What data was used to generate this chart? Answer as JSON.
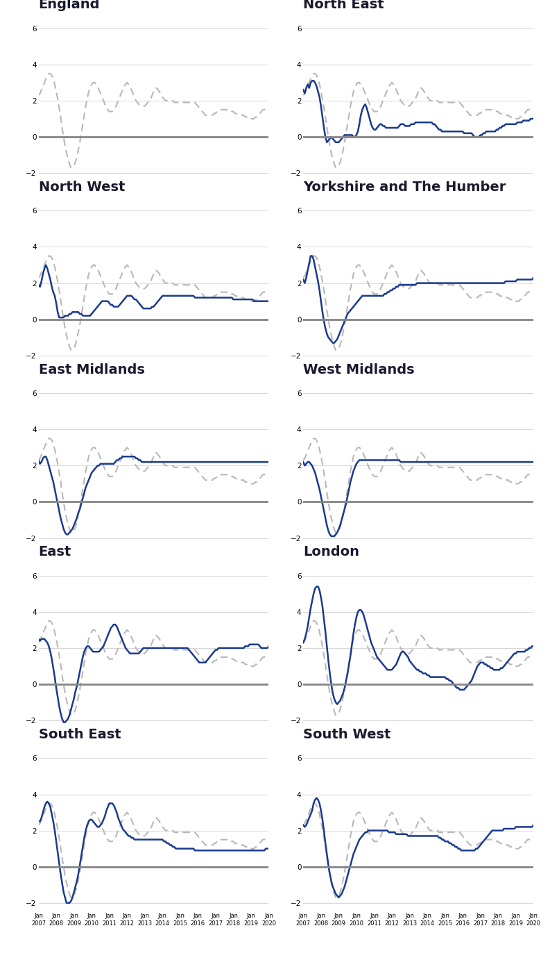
{
  "regions": [
    "England",
    "North East",
    "North West",
    "Yorkshire and The Humber",
    "East Midlands",
    "West Midlands",
    "East",
    "London",
    "South East",
    "South West"
  ],
  "n_points": 157,
  "ylim": [
    -2.5,
    6.5
  ],
  "yticks": [
    -2,
    0,
    2,
    4,
    6
  ],
  "title_fontsize": 14,
  "line_color_blue": "#1a3a8f",
  "line_color_gray": "#b8b8b8",
  "zero_line_color": "#888888",
  "grid_line_color": "#d0d0d0",
  "background_color": "#ffffff",
  "england_series": [
    2.3,
    2.4,
    2.6,
    2.8,
    3.0,
    3.2,
    3.4,
    3.5,
    3.5,
    3.4,
    3.2,
    2.9,
    2.5,
    2.1,
    1.6,
    1.1,
    0.5,
    0.0,
    -0.5,
    -0.9,
    -1.2,
    -1.5,
    -1.7,
    -1.7,
    -1.6,
    -1.4,
    -1.1,
    -0.7,
    -0.3,
    0.2,
    0.7,
    1.2,
    1.7,
    2.1,
    2.5,
    2.7,
    2.9,
    3.0,
    3.0,
    2.9,
    2.8,
    2.6,
    2.4,
    2.2,
    2.0,
    1.8,
    1.6,
    1.5,
    1.4,
    1.4,
    1.4,
    1.5,
    1.6,
    1.8,
    2.0,
    2.2,
    2.4,
    2.6,
    2.8,
    2.9,
    3.0,
    2.9,
    2.8,
    2.6,
    2.4,
    2.2,
    2.0,
    1.9,
    1.8,
    1.7,
    1.7,
    1.7,
    1.7,
    1.8,
    1.9,
    2.0,
    2.1,
    2.3,
    2.5,
    2.7,
    2.7,
    2.6,
    2.5,
    2.3,
    2.2,
    2.1,
    2.0,
    2.0,
    2.0,
    2.0,
    2.0,
    2.0,
    1.9,
    1.9,
    1.9,
    1.9,
    1.9,
    1.9,
    1.9,
    1.9,
    1.9,
    1.9,
    1.9,
    1.9,
    1.9,
    1.9,
    1.9,
    1.8,
    1.7,
    1.6,
    1.5,
    1.4,
    1.3,
    1.2,
    1.2,
    1.2,
    1.2,
    1.2,
    1.2,
    1.3,
    1.3,
    1.4,
    1.4,
    1.5,
    1.5,
    1.5,
    1.5,
    1.5,
    1.5,
    1.5,
    1.5,
    1.4,
    1.4,
    1.3,
    1.3,
    1.2,
    1.2,
    1.2,
    1.2,
    1.2,
    1.1,
    1.1,
    1.0,
    1.0,
    1.0,
    1.0,
    1.0,
    1.1,
    1.1,
    1.2,
    1.3,
    1.4,
    1.5,
    1.5,
    1.6,
    1.6,
    1.6
  ],
  "region_series": {
    "England": null,
    "North East": [
      2.6,
      2.4,
      2.7,
      2.9,
      2.7,
      3.0,
      3.1,
      3.1,
      3.0,
      2.8,
      2.5,
      2.2,
      1.7,
      1.1,
      0.5,
      0.0,
      -0.3,
      -0.2,
      -0.1,
      0.0,
      -0.1,
      -0.2,
      -0.3,
      -0.3,
      -0.3,
      -0.2,
      -0.1,
      0.0,
      0.1,
      0.1,
      0.1,
      0.1,
      0.1,
      0.1,
      0.0,
      0.0,
      0.1,
      0.3,
      0.7,
      1.2,
      1.5,
      1.7,
      1.8,
      1.6,
      1.3,
      1.0,
      0.7,
      0.5,
      0.4,
      0.4,
      0.5,
      0.6,
      0.7,
      0.7,
      0.6,
      0.6,
      0.5,
      0.5,
      0.5,
      0.5,
      0.5,
      0.5,
      0.5,
      0.5,
      0.5,
      0.6,
      0.7,
      0.7,
      0.7,
      0.6,
      0.6,
      0.6,
      0.6,
      0.7,
      0.7,
      0.7,
      0.8,
      0.8,
      0.8,
      0.8,
      0.8,
      0.8,
      0.8,
      0.8,
      0.8,
      0.8,
      0.8,
      0.8,
      0.7,
      0.7,
      0.6,
      0.5,
      0.4,
      0.4,
      0.3,
      0.3,
      0.3,
      0.3,
      0.3,
      0.3,
      0.3,
      0.3,
      0.3,
      0.3,
      0.3,
      0.3,
      0.3,
      0.3,
      0.3,
      0.2,
      0.2,
      0.2,
      0.2,
      0.2,
      0.2,
      0.1,
      0.0,
      0.0,
      0.0,
      0.0,
      0.1,
      0.1,
      0.2,
      0.2,
      0.3,
      0.3,
      0.3,
      0.3,
      0.3,
      0.3,
      0.3,
      0.4,
      0.4,
      0.5,
      0.5,
      0.6,
      0.6,
      0.7,
      0.7,
      0.7,
      0.7,
      0.7,
      0.7,
      0.7,
      0.7,
      0.8,
      0.8,
      0.8,
      0.8,
      0.9,
      0.9,
      0.9,
      0.9,
      0.9,
      1.0,
      1.0,
      1.0
    ],
    "North West": [
      1.9,
      1.8,
      2.1,
      2.5,
      2.8,
      3.0,
      2.8,
      2.5,
      2.2,
      1.8,
      1.5,
      1.3,
      0.9,
      0.4,
      0.1,
      0.1,
      0.1,
      0.1,
      0.2,
      0.2,
      0.2,
      0.3,
      0.3,
      0.4,
      0.4,
      0.4,
      0.4,
      0.4,
      0.3,
      0.3,
      0.2,
      0.2,
      0.2,
      0.2,
      0.2,
      0.2,
      0.3,
      0.4,
      0.5,
      0.6,
      0.7,
      0.8,
      0.9,
      1.0,
      1.0,
      1.0,
      1.0,
      1.0,
      0.9,
      0.8,
      0.8,
      0.7,
      0.7,
      0.7,
      0.7,
      0.8,
      0.9,
      1.0,
      1.1,
      1.2,
      1.3,
      1.3,
      1.3,
      1.3,
      1.2,
      1.1,
      1.1,
      1.0,
      0.9,
      0.8,
      0.7,
      0.6,
      0.6,
      0.6,
      0.6,
      0.6,
      0.6,
      0.7,
      0.7,
      0.8,
      0.9,
      1.0,
      1.1,
      1.2,
      1.3,
      1.3,
      1.3,
      1.3,
      1.3,
      1.3,
      1.3,
      1.3,
      1.3,
      1.3,
      1.3,
      1.3,
      1.3,
      1.3,
      1.3,
      1.3,
      1.3,
      1.3,
      1.3,
      1.3,
      1.3,
      1.3,
      1.2,
      1.2,
      1.2,
      1.2,
      1.2,
      1.2,
      1.2,
      1.2,
      1.2,
      1.2,
      1.2,
      1.2,
      1.2,
      1.2,
      1.2,
      1.2,
      1.2,
      1.2,
      1.2,
      1.2,
      1.2,
      1.2,
      1.2,
      1.2,
      1.2,
      1.2,
      1.1,
      1.1,
      1.1,
      1.1,
      1.1,
      1.1,
      1.1,
      1.1,
      1.1,
      1.1,
      1.1,
      1.1,
      1.1,
      1.1,
      1.0,
      1.0,
      1.0,
      1.0,
      1.0,
      1.0,
      1.0,
      1.0,
      1.0,
      1.0,
      1.0
    ],
    "Yorkshire and The Humber": [
      2.2,
      2.0,
      2.3,
      2.7,
      3.1,
      3.5,
      3.5,
      3.3,
      2.9,
      2.5,
      2.1,
      1.6,
      1.0,
      0.4,
      -0.1,
      -0.5,
      -0.8,
      -1.0,
      -1.1,
      -1.2,
      -1.3,
      -1.3,
      -1.2,
      -1.1,
      -0.9,
      -0.7,
      -0.5,
      -0.3,
      -0.1,
      0.1,
      0.3,
      0.4,
      0.5,
      0.6,
      0.7,
      0.8,
      0.9,
      1.0,
      1.1,
      1.2,
      1.3,
      1.3,
      1.3,
      1.3,
      1.3,
      1.3,
      1.3,
      1.3,
      1.3,
      1.3,
      1.3,
      1.3,
      1.3,
      1.3,
      1.3,
      1.4,
      1.4,
      1.5,
      1.5,
      1.6,
      1.6,
      1.7,
      1.7,
      1.8,
      1.8,
      1.9,
      1.9,
      1.9,
      1.9,
      1.9,
      1.9,
      1.9,
      1.9,
      1.9,
      1.9,
      1.9,
      1.9,
      2.0,
      2.0,
      2.0,
      2.0,
      2.0,
      2.0,
      2.0,
      2.0,
      2.0,
      2.0,
      2.0,
      2.0,
      2.0,
      2.0,
      2.0,
      2.0,
      2.0,
      2.0,
      2.0,
      2.0,
      2.0,
      2.0,
      2.0,
      2.0,
      2.0,
      2.0,
      2.0,
      2.0,
      2.0,
      2.0,
      2.0,
      2.0,
      2.0,
      2.0,
      2.0,
      2.0,
      2.0,
      2.0,
      2.0,
      2.0,
      2.0,
      2.0,
      2.0,
      2.0,
      2.0,
      2.0,
      2.0,
      2.0,
      2.0,
      2.0,
      2.0,
      2.0,
      2.0,
      2.0,
      2.0,
      2.0,
      2.0,
      2.0,
      2.0,
      2.0,
      2.1,
      2.1,
      2.1,
      2.1,
      2.1,
      2.1,
      2.1,
      2.1,
      2.2,
      2.2,
      2.2,
      2.2,
      2.2,
      2.2,
      2.2,
      2.2,
      2.2,
      2.2,
      2.2,
      2.3
    ],
    "East Midlands": [
      2.3,
      2.1,
      2.2,
      2.4,
      2.5,
      2.5,
      2.3,
      2.0,
      1.7,
      1.4,
      1.1,
      0.7,
      0.3,
      -0.1,
      -0.5,
      -0.9,
      -1.2,
      -1.5,
      -1.7,
      -1.8,
      -1.8,
      -1.7,
      -1.6,
      -1.5,
      -1.3,
      -1.1,
      -0.9,
      -0.6,
      -0.4,
      -0.1,
      0.2,
      0.5,
      0.8,
      1.0,
      1.2,
      1.4,
      1.6,
      1.7,
      1.8,
      1.9,
      2.0,
      2.0,
      2.1,
      2.1,
      2.1,
      2.1,
      2.1,
      2.1,
      2.1,
      2.1,
      2.1,
      2.1,
      2.2,
      2.3,
      2.3,
      2.4,
      2.4,
      2.5,
      2.5,
      2.5,
      2.5,
      2.5,
      2.5,
      2.5,
      2.5,
      2.5,
      2.4,
      2.4,
      2.3,
      2.3,
      2.2,
      2.2,
      2.2,
      2.2,
      2.2,
      2.2,
      2.2,
      2.2,
      2.2,
      2.2,
      2.2,
      2.2,
      2.2,
      2.2,
      2.2,
      2.2,
      2.2,
      2.2,
      2.2,
      2.2,
      2.2,
      2.2,
      2.2,
      2.2,
      2.2,
      2.2,
      2.2,
      2.2,
      2.2,
      2.2,
      2.2,
      2.2,
      2.2,
      2.2,
      2.2,
      2.2,
      2.2,
      2.2,
      2.2,
      2.2,
      2.2,
      2.2,
      2.2,
      2.2,
      2.2,
      2.2,
      2.2,
      2.2,
      2.2,
      2.2,
      2.2,
      2.2,
      2.2,
      2.2,
      2.2,
      2.2,
      2.2,
      2.2,
      2.2,
      2.2,
      2.2,
      2.2,
      2.2,
      2.2,
      2.2,
      2.2,
      2.2,
      2.2,
      2.2,
      2.2,
      2.2,
      2.2,
      2.2,
      2.2,
      2.2,
      2.2,
      2.2,
      2.2,
      2.2,
      2.2,
      2.2,
      2.2,
      2.2,
      2.2,
      2.2,
      2.2,
      2.2
    ],
    "West Midlands": [
      2.2,
      2.0,
      2.1,
      2.2,
      2.2,
      2.1,
      2.0,
      1.8,
      1.6,
      1.3,
      1.0,
      0.7,
      0.3,
      -0.1,
      -0.5,
      -0.9,
      -1.3,
      -1.6,
      -1.8,
      -1.9,
      -1.9,
      -1.9,
      -1.8,
      -1.7,
      -1.5,
      -1.3,
      -1.0,
      -0.7,
      -0.4,
      -0.1,
      0.3,
      0.7,
      1.1,
      1.4,
      1.7,
      1.9,
      2.1,
      2.2,
      2.3,
      2.3,
      2.3,
      2.3,
      2.3,
      2.3,
      2.3,
      2.3,
      2.3,
      2.3,
      2.3,
      2.3,
      2.3,
      2.3,
      2.3,
      2.3,
      2.3,
      2.3,
      2.3,
      2.3,
      2.3,
      2.3,
      2.3,
      2.3,
      2.3,
      2.3,
      2.3,
      2.3,
      2.2,
      2.2,
      2.2,
      2.2,
      2.2,
      2.2,
      2.2,
      2.2,
      2.2,
      2.2,
      2.2,
      2.2,
      2.2,
      2.2,
      2.2,
      2.2,
      2.2,
      2.2,
      2.2,
      2.2,
      2.2,
      2.2,
      2.2,
      2.2,
      2.2,
      2.2,
      2.2,
      2.2,
      2.2,
      2.2,
      2.2,
      2.2,
      2.2,
      2.2,
      2.2,
      2.2,
      2.2,
      2.2,
      2.2,
      2.2,
      2.2,
      2.2,
      2.2,
      2.2,
      2.2,
      2.2,
      2.2,
      2.2,
      2.2,
      2.2,
      2.2,
      2.2,
      2.2,
      2.2,
      2.2,
      2.2,
      2.2,
      2.2,
      2.2,
      2.2,
      2.2,
      2.2,
      2.2,
      2.2,
      2.2,
      2.2,
      2.2,
      2.2,
      2.2,
      2.2,
      2.2,
      2.2,
      2.2,
      2.2,
      2.2,
      2.2,
      2.2,
      2.2,
      2.2,
      2.2,
      2.2,
      2.2,
      2.2,
      2.2,
      2.2,
      2.2,
      2.2,
      2.2,
      2.2,
      2.2,
      2.2
    ],
    "East": [
      2.5,
      2.4,
      2.5,
      2.5,
      2.5,
      2.4,
      2.3,
      2.1,
      1.8,
      1.4,
      0.9,
      0.4,
      -0.2,
      -0.7,
      -1.2,
      -1.6,
      -1.9,
      -2.1,
      -2.1,
      -2.0,
      -1.9,
      -1.7,
      -1.4,
      -1.1,
      -0.8,
      -0.4,
      -0.1,
      0.3,
      0.7,
      1.1,
      1.5,
      1.8,
      2.0,
      2.1,
      2.1,
      2.0,
      1.9,
      1.8,
      1.8,
      1.8,
      1.8,
      1.8,
      1.9,
      2.0,
      2.1,
      2.3,
      2.5,
      2.7,
      2.9,
      3.1,
      3.2,
      3.3,
      3.3,
      3.2,
      3.0,
      2.8,
      2.6,
      2.4,
      2.2,
      2.0,
      1.9,
      1.8,
      1.7,
      1.7,
      1.7,
      1.7,
      1.7,
      1.7,
      1.7,
      1.8,
      1.9,
      2.0,
      2.0,
      2.0,
      2.0,
      2.0,
      2.0,
      2.0,
      2.0,
      2.0,
      2.0,
      2.0,
      2.0,
      2.0,
      2.0,
      2.0,
      2.0,
      2.0,
      2.0,
      2.0,
      2.0,
      2.0,
      2.0,
      2.0,
      2.0,
      2.0,
      2.0,
      2.0,
      2.0,
      2.0,
      2.0,
      2.0,
      1.9,
      1.8,
      1.7,
      1.6,
      1.5,
      1.4,
      1.3,
      1.2,
      1.2,
      1.2,
      1.2,
      1.2,
      1.3,
      1.4,
      1.5,
      1.6,
      1.7,
      1.8,
      1.9,
      1.9,
      2.0,
      2.0,
      2.0,
      2.0,
      2.0,
      2.0,
      2.0,
      2.0,
      2.0,
      2.0,
      2.0,
      2.0,
      2.0,
      2.0,
      2.0,
      2.0,
      2.0,
      2.0,
      2.1,
      2.1,
      2.1,
      2.2,
      2.2,
      2.2,
      2.2,
      2.2,
      2.2,
      2.2,
      2.1,
      2.0,
      2.0,
      2.0,
      2.0,
      2.0,
      2.1
    ],
    "London": [
      2.3,
      2.5,
      2.8,
      3.2,
      3.7,
      4.2,
      4.6,
      5.0,
      5.3,
      5.4,
      5.4,
      5.2,
      4.8,
      4.3,
      3.6,
      2.9,
      2.1,
      1.3,
      0.6,
      0.0,
      -0.5,
      -0.8,
      -1.0,
      -1.1,
      -1.0,
      -0.9,
      -0.7,
      -0.5,
      -0.2,
      0.2,
      0.6,
      1.1,
      1.6,
      2.2,
      2.8,
      3.3,
      3.7,
      4.0,
      4.1,
      4.1,
      4.0,
      3.8,
      3.5,
      3.2,
      2.9,
      2.6,
      2.3,
      2.1,
      1.9,
      1.7,
      1.5,
      1.4,
      1.3,
      1.2,
      1.1,
      1.0,
      0.9,
      0.8,
      0.8,
      0.8,
      0.8,
      0.9,
      1.0,
      1.1,
      1.3,
      1.5,
      1.7,
      1.8,
      1.8,
      1.7,
      1.6,
      1.5,
      1.3,
      1.2,
      1.1,
      1.0,
      0.9,
      0.8,
      0.8,
      0.7,
      0.7,
      0.6,
      0.6,
      0.6,
      0.5,
      0.5,
      0.4,
      0.4,
      0.4,
      0.4,
      0.4,
      0.4,
      0.4,
      0.4,
      0.4,
      0.4,
      0.4,
      0.3,
      0.3,
      0.2,
      0.2,
      0.1,
      0.0,
      -0.1,
      -0.2,
      -0.2,
      -0.3,
      -0.3,
      -0.3,
      -0.3,
      -0.2,
      -0.1,
      0.0,
      0.1,
      0.2,
      0.4,
      0.6,
      0.8,
      1.0,
      1.1,
      1.2,
      1.2,
      1.2,
      1.1,
      1.1,
      1.0,
      1.0,
      0.9,
      0.9,
      0.8,
      0.8,
      0.8,
      0.8,
      0.8,
      0.9,
      0.9,
      1.0,
      1.1,
      1.2,
      1.3,
      1.4,
      1.5,
      1.6,
      1.7,
      1.7,
      1.8,
      1.8,
      1.8,
      1.8,
      1.8,
      1.8,
      1.9,
      1.9,
      2.0,
      2.0,
      2.1,
      2.1
    ],
    "South East": [
      2.5,
      2.5,
      2.7,
      3.0,
      3.3,
      3.5,
      3.6,
      3.5,
      3.3,
      2.9,
      2.5,
      2.0,
      1.4,
      0.8,
      0.2,
      -0.4,
      -0.9,
      -1.4,
      -1.7,
      -2.0,
      -2.0,
      -2.0,
      -1.9,
      -1.7,
      -1.4,
      -1.1,
      -0.8,
      -0.4,
      0.1,
      0.6,
      1.1,
      1.6,
      2.0,
      2.3,
      2.5,
      2.6,
      2.6,
      2.5,
      2.4,
      2.3,
      2.2,
      2.2,
      2.3,
      2.4,
      2.6,
      2.8,
      3.1,
      3.3,
      3.5,
      3.5,
      3.5,
      3.4,
      3.2,
      3.0,
      2.7,
      2.5,
      2.3,
      2.1,
      2.0,
      1.9,
      1.8,
      1.7,
      1.7,
      1.6,
      1.6,
      1.5,
      1.5,
      1.5,
      1.5,
      1.5,
      1.5,
      1.5,
      1.5,
      1.5,
      1.5,
      1.5,
      1.5,
      1.5,
      1.5,
      1.5,
      1.5,
      1.5,
      1.5,
      1.5,
      1.5,
      1.4,
      1.4,
      1.3,
      1.3,
      1.2,
      1.2,
      1.1,
      1.1,
      1.0,
      1.0,
      1.0,
      1.0,
      1.0,
      1.0,
      1.0,
      1.0,
      1.0,
      1.0,
      1.0,
      1.0,
      1.0,
      0.9,
      0.9,
      0.9,
      0.9,
      0.9,
      0.9,
      0.9,
      0.9,
      0.9,
      0.9,
      0.9,
      0.9,
      0.9,
      0.9,
      0.9,
      0.9,
      0.9,
      0.9,
      0.9,
      0.9,
      0.9,
      0.9,
      0.9,
      0.9,
      0.9,
      0.9,
      0.9,
      0.9,
      0.9,
      0.9,
      0.9,
      0.9,
      0.9,
      0.9,
      0.9,
      0.9,
      0.9,
      0.9,
      0.9,
      0.9,
      0.9,
      0.9,
      0.9,
      0.9,
      0.9,
      0.9,
      0.9,
      0.9,
      1.0,
      1.0,
      1.0
    ],
    "South West": [
      2.3,
      2.2,
      2.3,
      2.5,
      2.7,
      2.9,
      3.1,
      3.5,
      3.7,
      3.8,
      3.7,
      3.5,
      3.1,
      2.6,
      2.0,
      1.3,
      0.7,
      0.1,
      -0.4,
      -0.8,
      -1.1,
      -1.3,
      -1.5,
      -1.6,
      -1.7,
      -1.6,
      -1.5,
      -1.3,
      -1.1,
      -0.8,
      -0.5,
      -0.2,
      0.1,
      0.4,
      0.7,
      0.9,
      1.1,
      1.3,
      1.5,
      1.6,
      1.7,
      1.8,
      1.9,
      1.9,
      2.0,
      2.0,
      2.0,
      2.0,
      2.0,
      2.0,
      2.0,
      2.0,
      2.0,
      2.0,
      2.0,
      2.0,
      2.0,
      2.0,
      1.9,
      1.9,
      1.9,
      1.9,
      1.9,
      1.8,
      1.8,
      1.8,
      1.8,
      1.8,
      1.8,
      1.8,
      1.8,
      1.7,
      1.7,
      1.7,
      1.7,
      1.7,
      1.7,
      1.7,
      1.7,
      1.7,
      1.7,
      1.7,
      1.7,
      1.7,
      1.7,
      1.7,
      1.7,
      1.7,
      1.7,
      1.7,
      1.7,
      1.7,
      1.6,
      1.6,
      1.5,
      1.5,
      1.4,
      1.4,
      1.4,
      1.3,
      1.3,
      1.2,
      1.2,
      1.1,
      1.1,
      1.0,
      1.0,
      0.9,
      0.9,
      0.9,
      0.9,
      0.9,
      0.9,
      0.9,
      0.9,
      0.9,
      0.9,
      1.0,
      1.0,
      1.1,
      1.2,
      1.3,
      1.4,
      1.5,
      1.6,
      1.7,
      1.8,
      1.9,
      2.0,
      2.0,
      2.0,
      2.0,
      2.0,
      2.0,
      2.0,
      2.0,
      2.1,
      2.1,
      2.1,
      2.1,
      2.1,
      2.1,
      2.1,
      2.1,
      2.2,
      2.2,
      2.2,
      2.2,
      2.2,
      2.2,
      2.2,
      2.2,
      2.2,
      2.2,
      2.2,
      2.2,
      2.3
    ]
  }
}
